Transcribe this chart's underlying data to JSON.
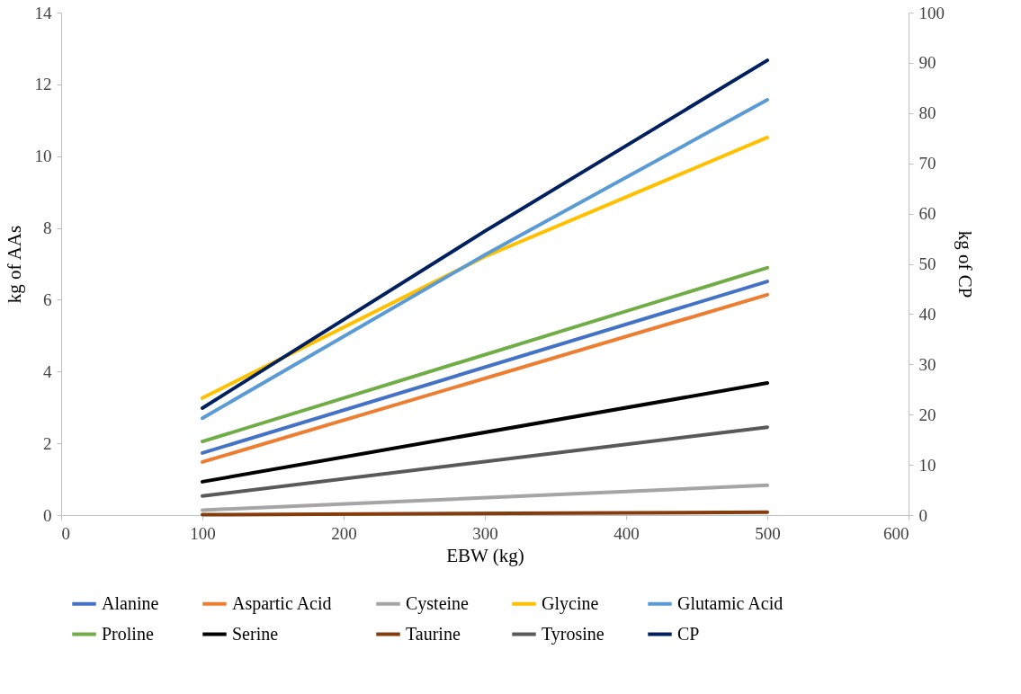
{
  "chart_data": {
    "type": "line",
    "xlabel": "EBW (kg)",
    "ylabel": "kg of AAs",
    "y2label": "kg of CP",
    "xlim": [
      0,
      600
    ],
    "xticks": [
      0,
      100,
      200,
      300,
      400,
      500,
      600
    ],
    "ylim": [
      0,
      14
    ],
    "yticks": [
      0,
      2,
      4,
      6,
      8,
      10,
      12,
      14
    ],
    "y2lim": [
      0,
      100
    ],
    "y2ticks": [
      0,
      10,
      20,
      30,
      40,
      50,
      60,
      70,
      80,
      90,
      100
    ],
    "grid": false,
    "legend": "bottom",
    "marker": "none",
    "line_style": "solid",
    "series": [
      {
        "name": "Alanine",
        "color": "#4472c4",
        "x": [
          100,
          500
        ],
        "values": [
          1.73,
          6.51
        ]
      },
      {
        "name": "Aspartic Acid",
        "color": "#ed7d31",
        "x": [
          100,
          500
        ],
        "values": [
          1.48,
          6.14
        ]
      },
      {
        "name": "Cysteine",
        "color": "#a5a5a5",
        "x": [
          100,
          500
        ],
        "values": [
          0.14,
          0.83
        ]
      },
      {
        "name": "Glycine",
        "color": "#ffc000",
        "x": [
          100,
          300,
          500
        ],
        "values": [
          3.26,
          7.2,
          10.52
        ]
      },
      {
        "name": "Glutamic Acid",
        "color": "#5b9bd5",
        "x": [
          100,
          300,
          500
        ],
        "values": [
          2.7,
          7.25,
          11.57
        ]
      },
      {
        "name": "Proline",
        "color": "#70ad47",
        "x": [
          100,
          500
        ],
        "values": [
          2.05,
          6.89
        ]
      },
      {
        "name": "Serine",
        "color": "#000000",
        "x": [
          100,
          500
        ],
        "values": [
          0.93,
          3.68
        ]
      },
      {
        "name": "Taurine",
        "color": "#843c0c",
        "x": [
          100,
          500
        ],
        "values": [
          0.01,
          0.08
        ]
      },
      {
        "name": "Tyrosine",
        "color": "#595959",
        "x": [
          100,
          500
        ],
        "values": [
          0.53,
          2.45
        ]
      },
      {
        "name": "CP",
        "color": "#002060",
        "axis": "y2",
        "x": [
          100,
          300,
          500
        ],
        "values": [
          21.3,
          56.5,
          90.5
        ]
      }
    ]
  }
}
